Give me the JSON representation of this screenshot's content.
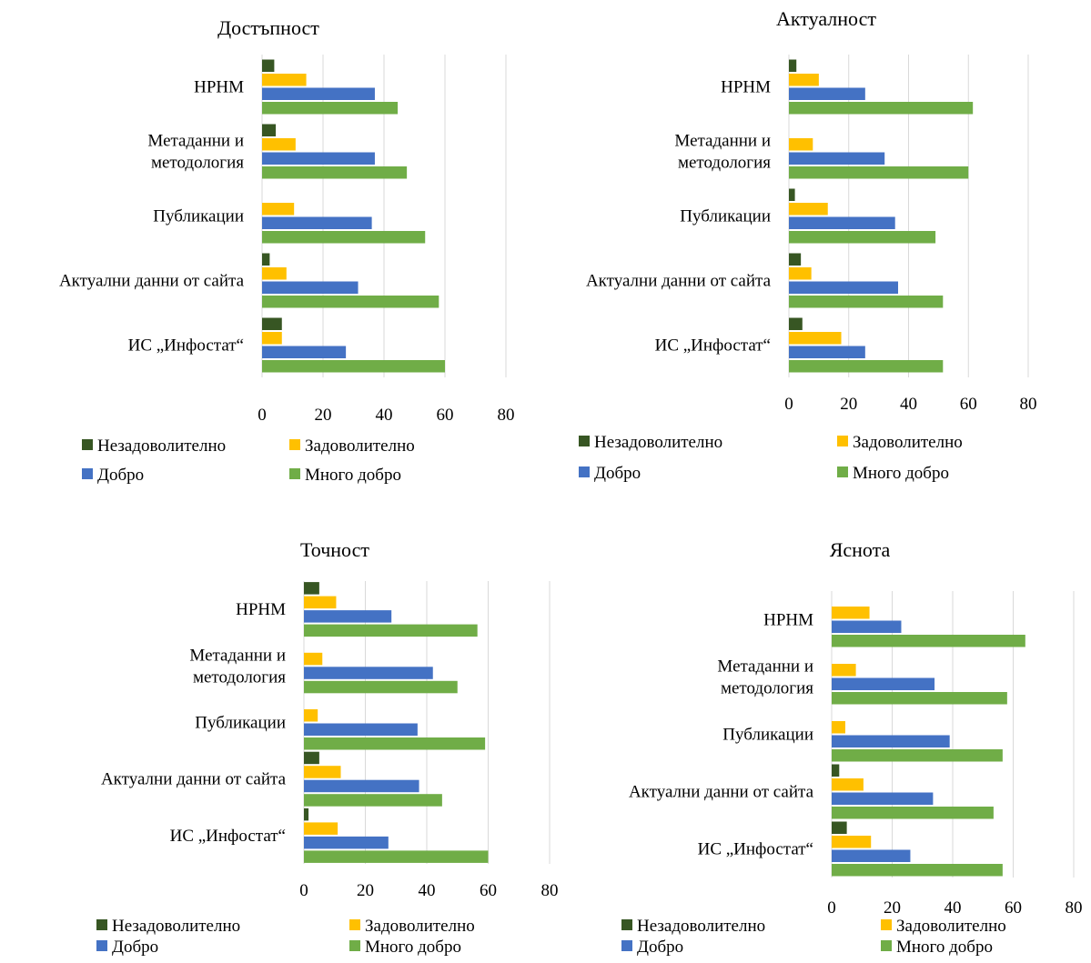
{
  "chart_data": [
    {
      "type": "bar",
      "orientation": "horizontal",
      "title": "Достъпност",
      "categories": [
        "НРНМ",
        "Метаданни и методология",
        "Публикации",
        "Актуални данни от сайта",
        "ИС „Инфостат“"
      ],
      "category_lines": [
        [
          "НРНМ"
        ],
        [
          "Метаданни и",
          "методология"
        ],
        [
          "Публикации"
        ],
        [
          "Актуални данни от сайта"
        ],
        [
          "ИС „Инфостат“"
        ]
      ],
      "series": [
        {
          "name": "Незадоволително",
          "color": "#375623",
          "values": [
            4,
            4.5,
            0,
            2.5,
            6.5
          ]
        },
        {
          "name": "Задоволително",
          "color": "#ffc000",
          "values": [
            14.5,
            11,
            10.5,
            8,
            6.5
          ]
        },
        {
          "name": "Добро",
          "color": "#4472c4",
          "values": [
            37,
            37,
            36,
            31.5,
            27.5
          ]
        },
        {
          "name": "Много добро",
          "color": "#70ad47",
          "values": [
            44.5,
            47.5,
            53.5,
            58,
            60
          ]
        }
      ],
      "xlim": [
        0,
        80
      ],
      "ticks": [
        "0",
        "20",
        "40",
        "60",
        "80"
      ],
      "grid": true,
      "legend": "bottom"
    },
    {
      "type": "bar",
      "orientation": "horizontal",
      "title": "Актуалност",
      "categories": [
        "НРНМ",
        "Метаданни и методология",
        "Публикации",
        "Актуални данни от сайта",
        "ИС „Инфостат“"
      ],
      "category_lines": [
        [
          "НРНМ"
        ],
        [
          "Метаданни и",
          "методология"
        ],
        [
          "Публикации"
        ],
        [
          "Актуални данни от сайта"
        ],
        [
          "ИС „Инфостат“"
        ]
      ],
      "series": [
        {
          "name": "Незадоволително",
          "color": "#375623",
          "values": [
            2.5,
            0,
            2,
            4,
            4.5
          ]
        },
        {
          "name": "Задоволително",
          "color": "#ffc000",
          "values": [
            10,
            8,
            13,
            7.5,
            17.5
          ]
        },
        {
          "name": "Добро",
          "color": "#4472c4",
          "values": [
            25.5,
            32,
            35.5,
            36.5,
            25.5
          ]
        },
        {
          "name": "Много добро",
          "color": "#70ad47",
          "values": [
            61.5,
            60,
            49,
            51.5,
            51.5
          ]
        }
      ],
      "xlim": [
        0,
        80
      ],
      "ticks": [
        "0",
        "20",
        "40",
        "60",
        "80"
      ],
      "grid": true,
      "legend": "bottom"
    },
    {
      "type": "bar",
      "orientation": "horizontal",
      "title": "Точност",
      "categories": [
        "НРНМ",
        "Метаданни и методология",
        "Публикации",
        "Актуални данни от сайта",
        "ИС „Инфостат“"
      ],
      "category_lines": [
        [
          "НРНМ"
        ],
        [
          "Метаданни и",
          "методология"
        ],
        [
          "Публикации"
        ],
        [
          "Актуални данни от сайта"
        ],
        [
          "ИС „Инфостат“"
        ]
      ],
      "series": [
        {
          "name": "Незадоволително",
          "color": "#375623",
          "values": [
            5,
            0,
            0,
            5,
            1.5
          ]
        },
        {
          "name": "Задоволително",
          "color": "#ffc000",
          "values": [
            10.5,
            6,
            4.5,
            12,
            11
          ]
        },
        {
          "name": "Добро",
          "color": "#4472c4",
          "values": [
            28.5,
            42,
            37,
            37.5,
            27.5
          ]
        },
        {
          "name": "Много добро",
          "color": "#70ad47",
          "values": [
            56.5,
            50,
            59,
            45,
            60
          ]
        }
      ],
      "xlim": [
        0,
        80
      ],
      "ticks": [
        "0",
        "20",
        "40",
        "60",
        "80"
      ],
      "grid": true,
      "legend": "bottom"
    },
    {
      "type": "bar",
      "orientation": "horizontal",
      "title": "Яснота",
      "categories": [
        "НРНМ",
        "Метаданни и методология",
        "Публикации",
        "Актуални данни от сайта",
        "ИС „Инфостат“"
      ],
      "category_lines": [
        [
          "НРНМ"
        ],
        [
          "Метаданни и",
          "методология"
        ],
        [
          "Публикации"
        ],
        [
          "Актуални данни от сайта"
        ],
        [
          "ИС „Инфостат“"
        ]
      ],
      "series": [
        {
          "name": "Незадоволително",
          "color": "#375623",
          "values": [
            0,
            0,
            0,
            2.5,
            5
          ]
        },
        {
          "name": "Задоволително",
          "color": "#ffc000",
          "values": [
            12.5,
            8,
            4.5,
            10.5,
            13
          ]
        },
        {
          "name": "Добро",
          "color": "#4472c4",
          "values": [
            23,
            34,
            39,
            33.5,
            26
          ]
        },
        {
          "name": "Много добро",
          "color": "#70ad47",
          "values": [
            64,
            58,
            56.5,
            53.5,
            56.5
          ]
        }
      ],
      "xlim": [
        0,
        80
      ],
      "ticks": [
        "0",
        "20",
        "40",
        "60",
        "80"
      ],
      "grid": true,
      "legend": "bottom"
    }
  ]
}
